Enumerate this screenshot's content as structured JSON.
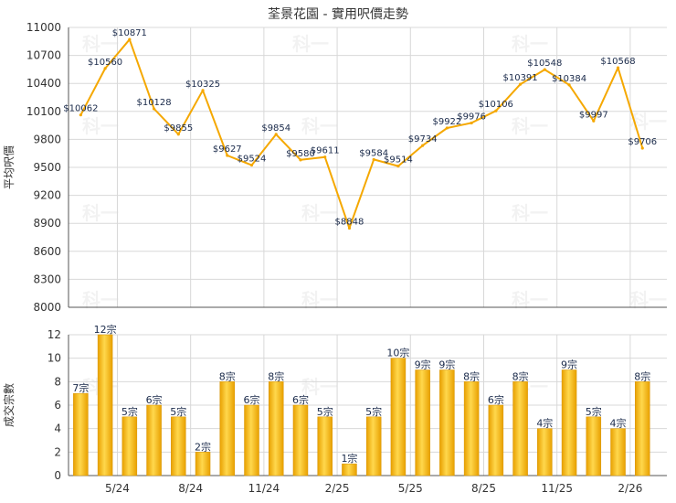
{
  "title": "荃景花園 - 實用呎價走勢",
  "watermark": "科一",
  "colors": {
    "line": "#f5a800",
    "bar_light": "#ffd84d",
    "bar_dark": "#e8a000",
    "grid": "#d8d8d8",
    "axis": "#555555"
  },
  "x_tick_labels": [
    "5/24",
    "8/24",
    "11/24",
    "2/25",
    "5/25",
    "8/25",
    "11/25",
    "2/26"
  ],
  "chart_data": [
    {
      "type": "line",
      "ylabel": "平均呎價",
      "ylim": [
        8000,
        11000
      ],
      "yticks": [
        8000,
        8300,
        8600,
        8900,
        9200,
        9500,
        9800,
        10100,
        10400,
        10700,
        11000
      ],
      "grid": true,
      "values": [
        10062,
        10560,
        10871,
        10128,
        9855,
        10325,
        9627,
        9524,
        9854,
        9580,
        9611,
        8848,
        9584,
        9514,
        9734,
        9922,
        9976,
        10106,
        10391,
        10548,
        10384,
        9997,
        10568,
        9706
      ],
      "labels": [
        "$10062",
        "$10560",
        "$10871",
        "$10128",
        "$9855",
        "$10325",
        "$9627",
        "$9524",
        "$9854",
        "$9580",
        "$9611",
        "$8848",
        "$9584",
        "$9514",
        "$9734",
        "$9922",
        "$9976",
        "$10106",
        "$10391",
        "$10548",
        "$10384",
        "$9997",
        "$10568",
        "$9706"
      ]
    },
    {
      "type": "bar",
      "ylabel": "成交宗數",
      "ylim": [
        0,
        12
      ],
      "yticks": [
        0,
        2,
        4,
        6,
        8,
        10,
        12
      ],
      "grid": true,
      "values": [
        7,
        12,
        5,
        6,
        5,
        2,
        8,
        6,
        8,
        6,
        5,
        1,
        5,
        10,
        9,
        9,
        8,
        6,
        8,
        4,
        9,
        5,
        4,
        8
      ],
      "labels": [
        "7宗",
        "12宗",
        "5宗",
        "6宗",
        "5宗",
        "2宗",
        "8宗",
        "6宗",
        "8宗",
        "6宗",
        "5宗",
        "1宗",
        "5宗",
        "10宗",
        "9宗",
        "9宗",
        "8宗",
        "6宗",
        "8宗",
        "4宗",
        "9宗",
        "5宗",
        "4宗",
        "8宗"
      ]
    }
  ]
}
